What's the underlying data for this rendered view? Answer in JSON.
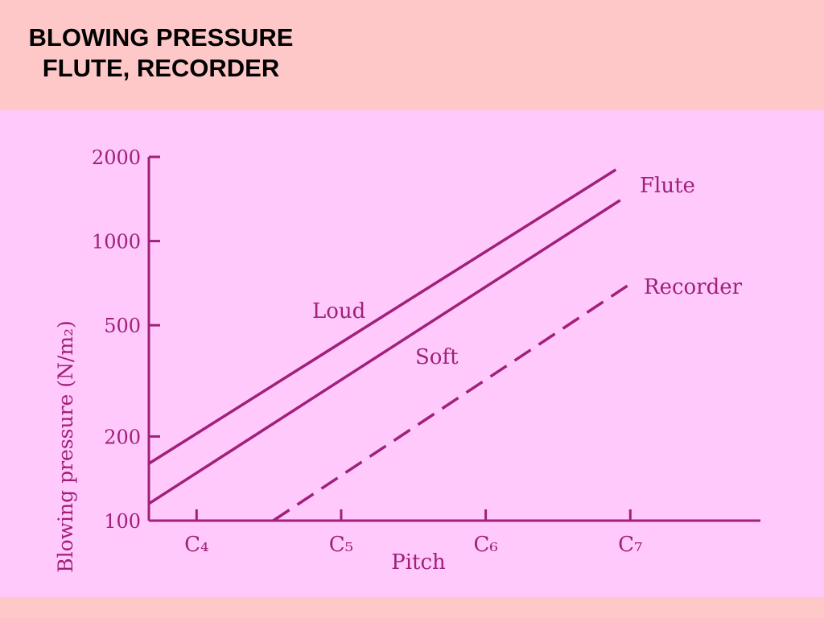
{
  "slide": {
    "title_line1": "BLOWING PRESSURE",
    "title_line2": "FLUTE, RECORDER"
  },
  "colors": {
    "background": "#ffc8c8",
    "panel": "#ffc9fb",
    "ink": "#a0207a"
  },
  "chart_data": {
    "type": "line",
    "title": "",
    "xlabel": "Pitch",
    "ylabel": "Blowing pressure (N/m₂)",
    "y_scale": "log",
    "ylim": [
      100,
      2000
    ],
    "y_ticks": [
      100,
      200,
      500,
      1000,
      2000
    ],
    "y_tick_labels": [
      "100",
      "200",
      "500",
      "1000",
      "2000"
    ],
    "x_ticks": [
      4,
      5,
      6,
      7
    ],
    "x_tick_labels": [
      "C₄",
      "C₅",
      "C₆",
      "C₇"
    ],
    "xlim": [
      3.67,
      7.9
    ],
    "series": [
      {
        "name": "Loud",
        "style": "solid",
        "x": [
          3.67,
          6.9
        ],
        "y": [
          160,
          1800
        ]
      },
      {
        "name": "Soft",
        "style": "solid",
        "x": [
          3.67,
          6.93
        ],
        "y": [
          115,
          1400
        ]
      },
      {
        "name": "Recorder",
        "style": "dashed",
        "x": [
          4.53,
          7.03
        ],
        "y": [
          100,
          720
        ]
      }
    ],
    "annotations": [
      "Flute",
      "Loud",
      "Soft",
      "Recorder"
    ]
  }
}
